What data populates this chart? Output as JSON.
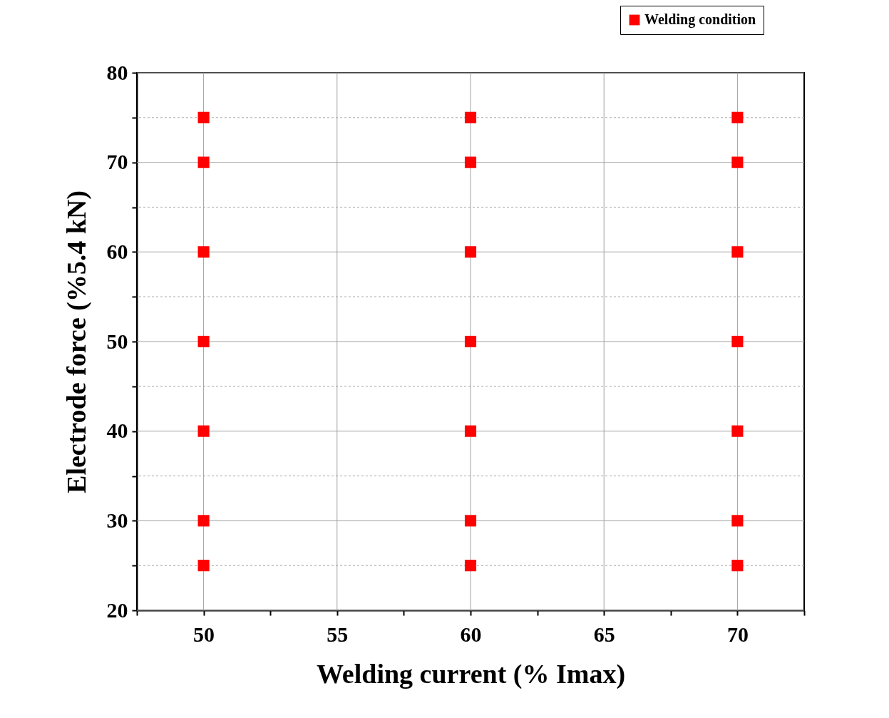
{
  "chart_data": {
    "type": "scatter",
    "xlabel": "Welding current (% Imax)",
    "ylabel": "Electrode force (%5.4 kN)",
    "series": [
      {
        "name": "Welding condition",
        "color": "#ff0000",
        "x": [
          50,
          50,
          50,
          50,
          50,
          50,
          50,
          60,
          60,
          60,
          60,
          60,
          60,
          60,
          70,
          70,
          70,
          70,
          70,
          70,
          70
        ],
        "values": [
          25,
          30,
          40,
          50,
          60,
          70,
          75,
          25,
          30,
          40,
          50,
          60,
          70,
          75,
          25,
          30,
          40,
          50,
          60,
          70,
          75
        ]
      }
    ],
    "marker": "square",
    "xlim": [
      47.5,
      72.5
    ],
    "xticks": [
      {
        "value": 47.5,
        "label": null
      },
      50,
      {
        "value": 52.5,
        "label": null
      },
      55,
      {
        "value": 57.5,
        "label": null
      },
      60,
      {
        "value": 62.5,
        "label": null
      },
      65,
      {
        "value": 67.5,
        "label": null
      },
      70,
      {
        "value": 72.5,
        "label": null
      }
    ],
    "ylim": [
      20,
      80
    ],
    "yticks": [
      20,
      {
        "value": 25,
        "label": null
      },
      30,
      {
        "value": 35,
        "label": null
      },
      40,
      {
        "value": 45,
        "label": null
      },
      50,
      {
        "value": 55,
        "label": null
      },
      60,
      {
        "value": 65,
        "label": null
      },
      70,
      {
        "value": 75,
        "label": null
      },
      80
    ],
    "grid": true,
    "legend": "top right"
  }
}
